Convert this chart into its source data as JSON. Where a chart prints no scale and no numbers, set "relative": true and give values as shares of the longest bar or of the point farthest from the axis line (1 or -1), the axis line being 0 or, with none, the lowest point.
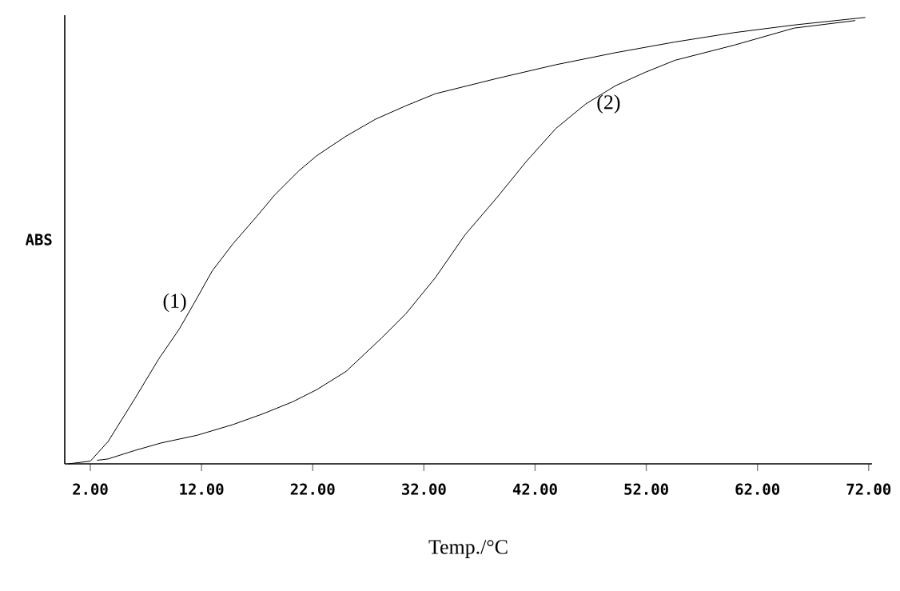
{
  "chart_data": {
    "type": "line",
    "relative": true,
    "xlabel": "Temp./°C",
    "ylabel": "ABS",
    "xlim": [
      -0.3,
      72.3
    ],
    "xticks": [
      {
        "value": 2,
        "label": "2.00"
      },
      {
        "value": 12,
        "label": "12.00"
      },
      {
        "value": 22,
        "label": "22.00"
      },
      {
        "value": 32,
        "label": "32.00"
      },
      {
        "value": 42,
        "label": "42.00"
      },
      {
        "value": 52,
        "label": "52.00"
      },
      {
        "value": 62,
        "label": "62.00"
      },
      {
        "value": 72,
        "label": "72.00"
      }
    ],
    "series": [
      {
        "name": "(1)",
        "color": "#000000",
        "x": [
          0.0,
          2.0,
          3.6,
          6.0,
          8.13,
          10.0,
          11.36,
          12.96,
          14.83,
          16.96,
          18.57,
          20.74,
          22.35,
          25.0,
          27.65,
          30.37,
          33.03,
          38.52,
          43.86,
          49.23,
          54.58,
          59.92,
          65.28,
          71.7
        ],
        "values": [
          0.0,
          0.006,
          0.05,
          0.146,
          0.234,
          0.302,
          0.361,
          0.432,
          0.493,
          0.554,
          0.602,
          0.656,
          0.69,
          0.734,
          0.772,
          0.802,
          0.829,
          0.863,
          0.894,
          0.921,
          0.945,
          0.966,
          0.983,
          1.0
        ]
      },
      {
        "name": "(2)",
        "color": "#000000",
        "x": [
          2.6,
          3.6,
          6.0,
          8.4,
          11.6,
          14.83,
          17.52,
          20.2,
          22.35,
          25.0,
          28.2,
          30.37,
          33.03,
          35.7,
          38.52,
          41.2,
          43.86,
          46.55,
          49.23,
          51.9,
          54.58,
          59.92,
          65.28,
          70.8
        ],
        "values": [
          0.008,
          0.011,
          0.03,
          0.047,
          0.064,
          0.088,
          0.112,
          0.139,
          0.166,
          0.207,
          0.282,
          0.336,
          0.417,
          0.513,
          0.595,
          0.677,
          0.751,
          0.806,
          0.847,
          0.877,
          0.904,
          0.938,
          0.976,
          0.993
        ]
      }
    ]
  }
}
